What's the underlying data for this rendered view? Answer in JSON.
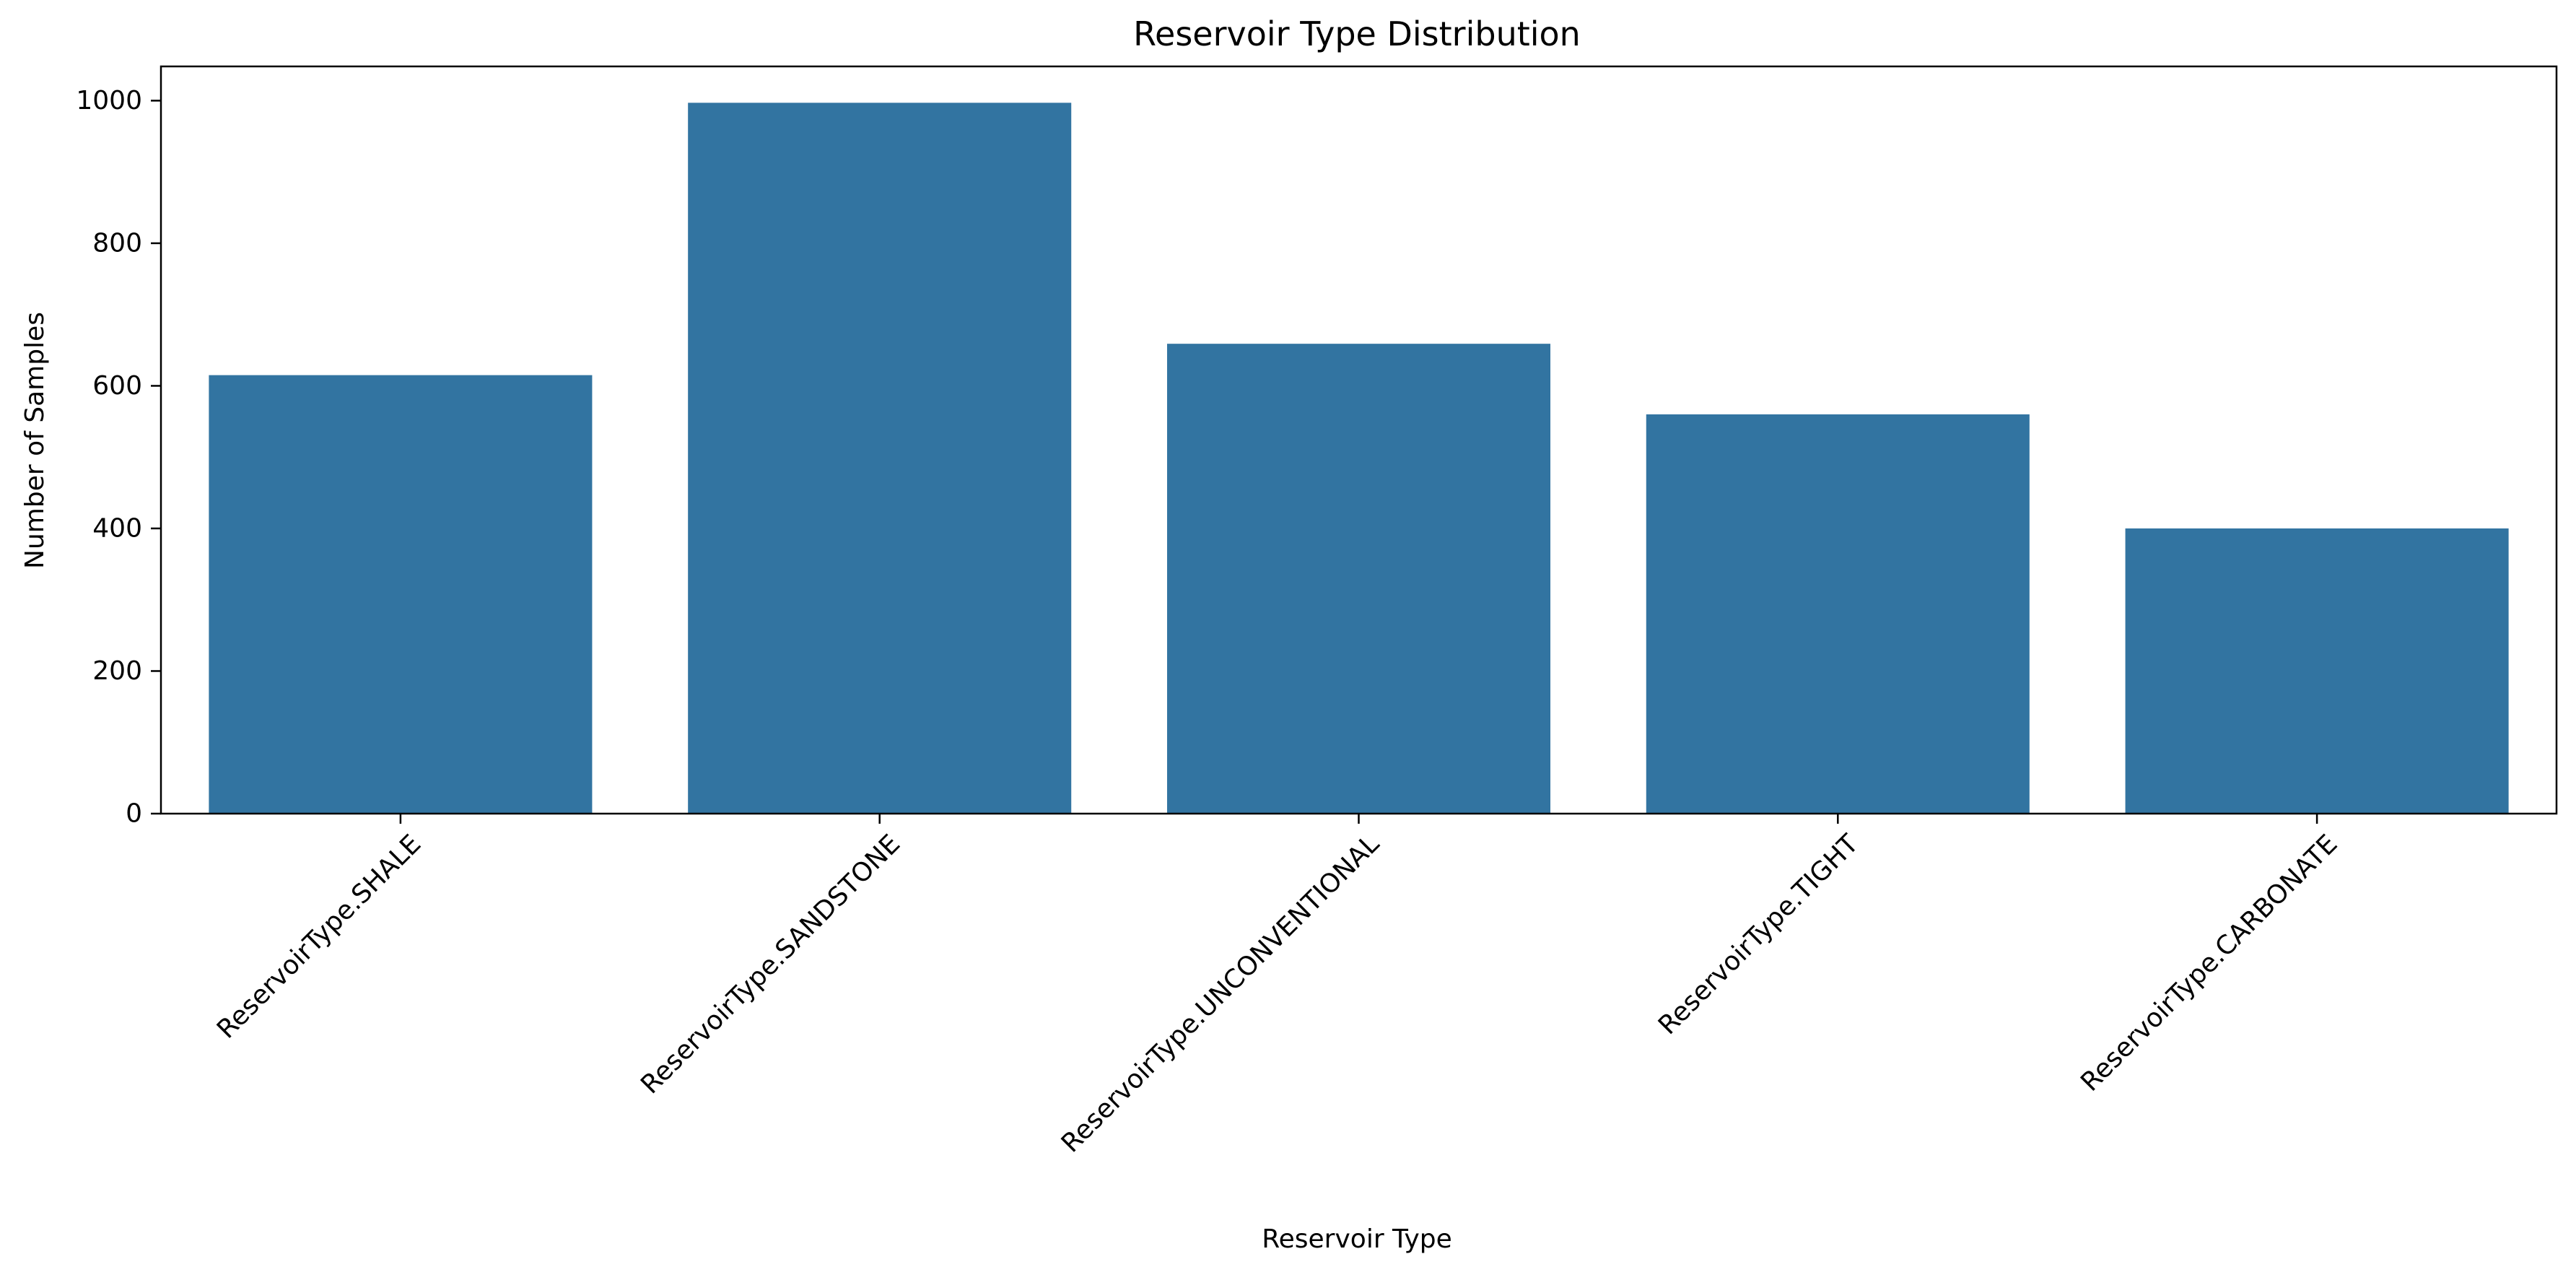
{
  "chart_data": {
    "type": "bar",
    "title": "Reservoir Type Distribution",
    "xlabel": "Reservoir Type",
    "ylabel": "Number of Samples",
    "categories": [
      "ReservoirType.SHALE",
      "ReservoirType.SANDSTONE",
      "ReservoirType.UNCONVENTIONAL",
      "ReservoirType.TIGHT",
      "ReservoirType.CARBONATE"
    ],
    "values": [
      615,
      997,
      659,
      560,
      400
    ],
    "ylim": [
      0,
      1048
    ],
    "yticks": [
      0,
      200,
      400,
      600,
      800,
      1000
    ],
    "x_tick_rotation": 45,
    "grid": false,
    "legend": "none",
    "bar_color": "#3274a1"
  }
}
